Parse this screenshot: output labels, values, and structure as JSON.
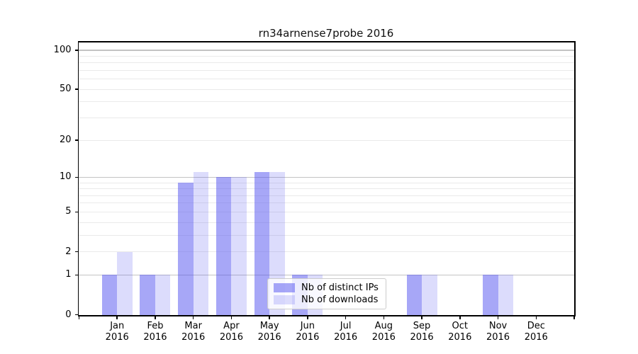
{
  "chart_data": {
    "type": "bar",
    "title": "rn34arnense7probe 2016",
    "year_label": "2016",
    "categories": [
      "Jan",
      "Feb",
      "Mar",
      "Apr",
      "May",
      "Jun",
      "Jul",
      "Aug",
      "Sep",
      "Oct",
      "Nov",
      "Dec"
    ],
    "series": [
      {
        "name": "Nb of distinct IPs",
        "color": "rgba(80,80,240,0.5)",
        "values": [
          1,
          1,
          9,
          10,
          11,
          1,
          0,
          0,
          1,
          0,
          1,
          0
        ]
      },
      {
        "name": "Nb of downloads",
        "color": "rgba(80,80,240,0.2)",
        "values": [
          2,
          1,
          11,
          10,
          11,
          1,
          0,
          0,
          1,
          0,
          1,
          0
        ]
      }
    ],
    "xlabel": "",
    "ylabel": "",
    "yscale": "log1p",
    "ylim": [
      0,
      116
    ],
    "y_tick_labels": [
      0,
      1,
      2,
      5,
      10,
      20,
      50,
      100
    ],
    "grid_major": [
      1,
      10,
      100
    ],
    "grid_minor": [
      2,
      3,
      4,
      5,
      6,
      7,
      8,
      9,
      20,
      30,
      40,
      50,
      60,
      70,
      80,
      90
    ],
    "grid_on": true,
    "legend_position": "inside lower-center",
    "colors": {
      "grid_major": "#c3c3c3",
      "grid_minor": "#eaeaea",
      "axis": "#000000",
      "bar_dark": "rgba(80,80,240,0.5)",
      "bar_light": "rgba(80,80,240,0.2)"
    }
  }
}
